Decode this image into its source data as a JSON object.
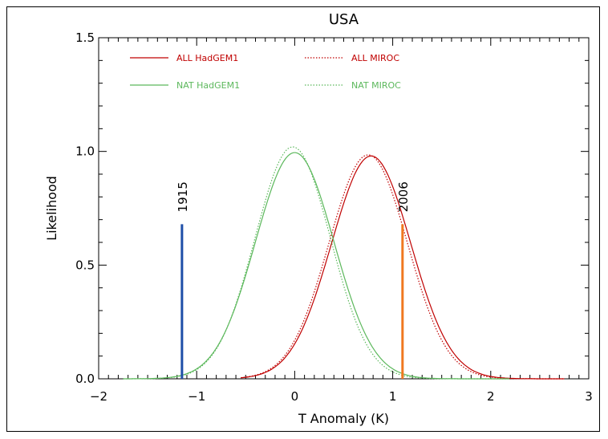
{
  "chart_data": {
    "type": "line",
    "title": "USA",
    "xlabel": "T Anomaly (K)",
    "ylabel": "Likelihood",
    "xlim": [
      -2,
      3
    ],
    "ylim": [
      0,
      1.5
    ],
    "x_ticks": [
      -2,
      -1,
      0,
      1,
      2,
      3
    ],
    "x_tick_labels": [
      "−2",
      "−1",
      "0",
      "1",
      "2",
      "3"
    ],
    "y_ticks": [
      0,
      0.5,
      1,
      1.5
    ],
    "y_tick_labels": [
      "0.0",
      "0.5",
      "1.0",
      "1.5"
    ],
    "grid": false,
    "legend_position": "top-left",
    "series": [
      {
        "name": "ALL HadGEM1",
        "style": "solid",
        "color": "#c00000",
        "mean": 0.78,
        "sd": 0.405,
        "peak": 0.98,
        "x_min": -0.55,
        "x_max": 2.75
      },
      {
        "name": "ALL MIROC",
        "style": "dotted",
        "color": "#c00000",
        "mean": 0.75,
        "sd": 0.4,
        "peak": 0.985,
        "x_min": -0.55,
        "x_max": 2.75
      },
      {
        "name": "NAT HadGEM1",
        "style": "solid",
        "color": "#5cb85c",
        "mean": 0.0,
        "sd": 0.4,
        "peak": 0.995,
        "x_min": -1.75,
        "x_max": 2.2
      },
      {
        "name": "NAT MIROC",
        "style": "dotted",
        "color": "#5cb85c",
        "mean": -0.02,
        "sd": 0.385,
        "peak": 1.02,
        "x_min": -1.75,
        "x_max": 2.2
      }
    ],
    "markers": [
      {
        "label": "1915",
        "x": -1.15,
        "height": 0.68,
        "color": "#1f4fa8"
      },
      {
        "label": "2006",
        "x": 1.1,
        "height": 0.68,
        "color": "#f07820"
      }
    ]
  }
}
